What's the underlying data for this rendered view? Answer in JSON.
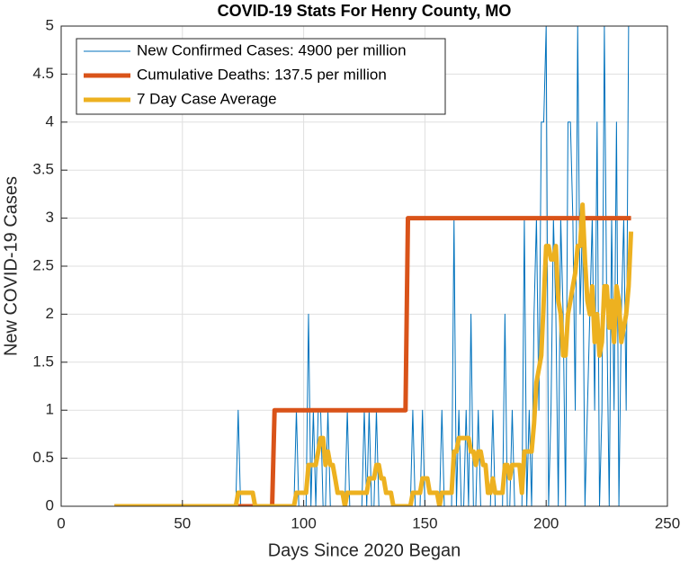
{
  "chart_data": {
    "type": "line",
    "title": "COVID-19 Stats For Henry County, MO",
    "x_label": "Days Since 2020 Began",
    "y_label": "New COVID-19 Cases",
    "xlim": [
      0,
      250
    ],
    "xticks": [
      0,
      50,
      100,
      150,
      200,
      250
    ],
    "ylim": [
      0,
      5
    ],
    "yticks": [
      0,
      0.5,
      1,
      1.5,
      2,
      2.5,
      3,
      3.5,
      4,
      4.5,
      5
    ],
    "grid": true,
    "legend": "upper left",
    "x": [
      22,
      23,
      24,
      25,
      26,
      27,
      28,
      29,
      30,
      31,
      32,
      33,
      34,
      35,
      36,
      37,
      38,
      39,
      40,
      41,
      42,
      43,
      44,
      45,
      46,
      47,
      48,
      49,
      50,
      51,
      52,
      53,
      54,
      55,
      56,
      57,
      58,
      59,
      60,
      61,
      62,
      63,
      64,
      65,
      66,
      67,
      68,
      69,
      70,
      71,
      72,
      73,
      74,
      75,
      76,
      77,
      78,
      79,
      80,
      81,
      82,
      83,
      84,
      85,
      86,
      87,
      88,
      89,
      90,
      91,
      92,
      93,
      94,
      95,
      96,
      97,
      98,
      99,
      100,
      101,
      102,
      103,
      104,
      105,
      106,
      107,
      108,
      109,
      110,
      111,
      112,
      113,
      114,
      115,
      116,
      117,
      118,
      119,
      120,
      121,
      122,
      123,
      124,
      125,
      126,
      127,
      128,
      129,
      130,
      131,
      132,
      133,
      134,
      135,
      136,
      137,
      138,
      139,
      140,
      141,
      142,
      143,
      144,
      145,
      146,
      147,
      148,
      149,
      150,
      151,
      152,
      153,
      154,
      155,
      156,
      157,
      158,
      159,
      160,
      161,
      162,
      163,
      164,
      165,
      166,
      167,
      168,
      169,
      170,
      171,
      172,
      173,
      174,
      175,
      176,
      177,
      178,
      179,
      180,
      181,
      182,
      183,
      184,
      185,
      186,
      187,
      188,
      189,
      190,
      191,
      192,
      193,
      194,
      195,
      196,
      197,
      198,
      199,
      200,
      201,
      202,
      203,
      204,
      205,
      206,
      207,
      208,
      209,
      210,
      211,
      212,
      213,
      214,
      215,
      216,
      217,
      218,
      219,
      220,
      221,
      222,
      223,
      224,
      225,
      226,
      227,
      228,
      229,
      230,
      231,
      232,
      233,
      234,
      235
    ],
    "series": [
      {
        "name": "New Confirmed Cases: 4900 per million",
        "color": "#0072bd",
        "width": 1,
        "values": [
          0,
          0,
          0,
          0,
          0,
          0,
          0,
          0,
          0,
          0,
          0,
          0,
          0,
          0,
          0,
          0,
          0,
          0,
          0,
          0,
          0,
          0,
          0,
          0,
          0,
          0,
          0,
          0,
          0,
          0,
          0,
          0,
          0,
          0,
          0,
          0,
          0,
          0,
          0,
          0,
          0,
          0,
          0,
          0,
          0,
          0,
          0,
          0,
          0,
          0,
          0,
          1,
          0,
          0,
          0,
          0,
          0,
          0,
          0,
          0,
          0,
          0,
          0,
          0,
          0,
          0,
          0,
          0,
          0,
          0,
          0,
          0,
          0,
          0,
          0,
          1,
          0,
          0,
          0,
          0,
          2,
          0,
          1,
          0,
          1,
          1,
          0,
          0,
          1,
          0,
          0,
          0,
          0,
          0,
          0,
          0,
          1,
          0,
          0,
          0,
          0,
          0,
          0,
          1,
          0,
          1,
          0,
          0,
          1,
          0,
          0,
          0,
          0,
          0,
          0,
          0,
          0,
          0,
          0,
          0,
          0,
          0,
          0,
          1,
          0,
          0,
          0,
          1,
          0,
          0,
          0,
          0,
          0,
          0,
          0,
          1,
          0,
          0,
          0,
          0,
          3,
          0,
          1,
          0,
          0,
          1,
          0,
          2,
          0,
          0,
          1,
          0,
          0,
          0,
          0,
          0,
          1,
          0,
          0,
          0,
          0,
          2,
          0,
          0,
          1,
          0,
          0,
          0,
          0,
          3,
          0,
          1,
          0,
          2,
          3,
          1,
          4,
          4,
          5,
          0,
          1,
          3,
          2,
          0,
          3,
          2,
          0,
          4,
          4,
          3,
          1,
          5,
          2,
          3,
          0,
          1,
          2,
          3,
          1,
          4,
          0,
          1,
          5,
          2,
          0,
          3,
          1,
          4,
          0,
          2,
          3,
          1,
          5,
          5
        ]
      },
      {
        "name": "Cumulative Deaths: 137.5 per million",
        "color": "#d95319",
        "width": 5,
        "values": [
          0,
          0,
          0,
          0,
          0,
          0,
          0,
          0,
          0,
          0,
          0,
          0,
          0,
          0,
          0,
          0,
          0,
          0,
          0,
          0,
          0,
          0,
          0,
          0,
          0,
          0,
          0,
          0,
          0,
          0,
          0,
          0,
          0,
          0,
          0,
          0,
          0,
          0,
          0,
          0,
          0,
          0,
          0,
          0,
          0,
          0,
          0,
          0,
          0,
          0,
          0,
          0,
          0,
          0,
          0,
          0,
          0,
          0,
          0,
          0,
          0,
          0,
          0,
          0,
          0,
          0,
          1,
          1,
          1,
          1,
          1,
          1,
          1,
          1,
          1,
          1,
          1,
          1,
          1,
          1,
          1,
          1,
          1,
          1,
          1,
          1,
          1,
          1,
          1,
          1,
          1,
          1,
          1,
          1,
          1,
          1,
          1,
          1,
          1,
          1,
          1,
          1,
          1,
          1,
          1,
          1,
          1,
          1,
          1,
          1,
          1,
          1,
          1,
          1,
          1,
          1,
          1,
          1,
          1,
          1,
          1,
          3,
          3,
          3,
          3,
          3,
          3,
          3,
          3,
          3,
          3,
          3,
          3,
          3,
          3,
          3,
          3,
          3,
          3,
          3,
          3,
          3,
          3,
          3,
          3,
          3,
          3,
          3,
          3,
          3,
          3,
          3,
          3,
          3,
          3,
          3,
          3,
          3,
          3,
          3,
          3,
          3,
          3,
          3,
          3,
          3,
          3,
          3,
          3,
          3,
          3,
          3,
          3,
          3,
          3,
          3,
          3,
          3,
          3,
          3,
          3,
          3,
          3,
          3,
          3,
          3,
          3,
          3,
          3,
          3,
          3,
          3,
          3,
          3,
          3,
          3,
          3,
          3,
          3,
          3,
          3,
          3,
          3,
          3,
          3,
          3,
          3,
          3,
          3,
          3,
          3,
          3,
          3,
          3
        ]
      },
      {
        "name": "7 Day Case Average",
        "color": "#edb120",
        "width": 5,
        "values": [
          0,
          0,
          0,
          0,
          0,
          0,
          0,
          0,
          0,
          0,
          0,
          0,
          0,
          0,
          0,
          0,
          0,
          0,
          0,
          0,
          0,
          0,
          0,
          0,
          0,
          0,
          0,
          0,
          0,
          0,
          0,
          0,
          0,
          0,
          0,
          0,
          0,
          0,
          0,
          0,
          0,
          0,
          0,
          0,
          0,
          0,
          0,
          0,
          0,
          0,
          0,
          0.14,
          0.14,
          0.14,
          0.14,
          0.14,
          0.14,
          0.14,
          0,
          0,
          0,
          0,
          0,
          0,
          0,
          0,
          0,
          0,
          0,
          0,
          0,
          0,
          0,
          0,
          0,
          0.14,
          0.14,
          0.14,
          0.14,
          0.14,
          0.43,
          0.43,
          0.43,
          0.43,
          0.57,
          0.71,
          0.71,
          0.43,
          0.57,
          0.43,
          0.43,
          0.29,
          0.14,
          0.14,
          0.14,
          0,
          0.14,
          0.14,
          0.14,
          0.14,
          0.14,
          0.14,
          0.14,
          0.14,
          0.14,
          0.29,
          0.29,
          0.29,
          0.43,
          0.43,
          0.29,
          0.29,
          0.14,
          0.14,
          0.14,
          0,
          0,
          0,
          0,
          0,
          0,
          0,
          0,
          0.14,
          0.14,
          0.14,
          0.14,
          0.29,
          0.29,
          0.29,
          0.14,
          0.14,
          0.14,
          0.14,
          0,
          0.14,
          0.14,
          0.14,
          0.14,
          0.14,
          0.57,
          0.57,
          0.71,
          0.71,
          0.71,
          0.71,
          0.71,
          0.57,
          0.57,
          0.43,
          0.57,
          0.57,
          0.43,
          0.43,
          0.14,
          0.14,
          0.29,
          0.14,
          0.14,
          0.14,
          0.14,
          0.43,
          0.43,
          0.29,
          0.43,
          0.43,
          0.43,
          0.43,
          0.14,
          0.57,
          0.57,
          0.57,
          0.57,
          0.86,
          1.29,
          1.43,
          1.57,
          2.14,
          2.71,
          2.71,
          2.57,
          2.57,
          2.71,
          2.14,
          2,
          1.57,
          1.57,
          2,
          2.14,
          2.29,
          2.43,
          2.71,
          2.71,
          3.14,
          2.57,
          2.14,
          2,
          2.29,
          1.71,
          2,
          1.57,
          1.71,
          2.29,
          2.29,
          1.86,
          2.14,
          1.71,
          2.29,
          2.14,
          1.71,
          1.86,
          2,
          2.29,
          2.86
        ]
      }
    ]
  }
}
